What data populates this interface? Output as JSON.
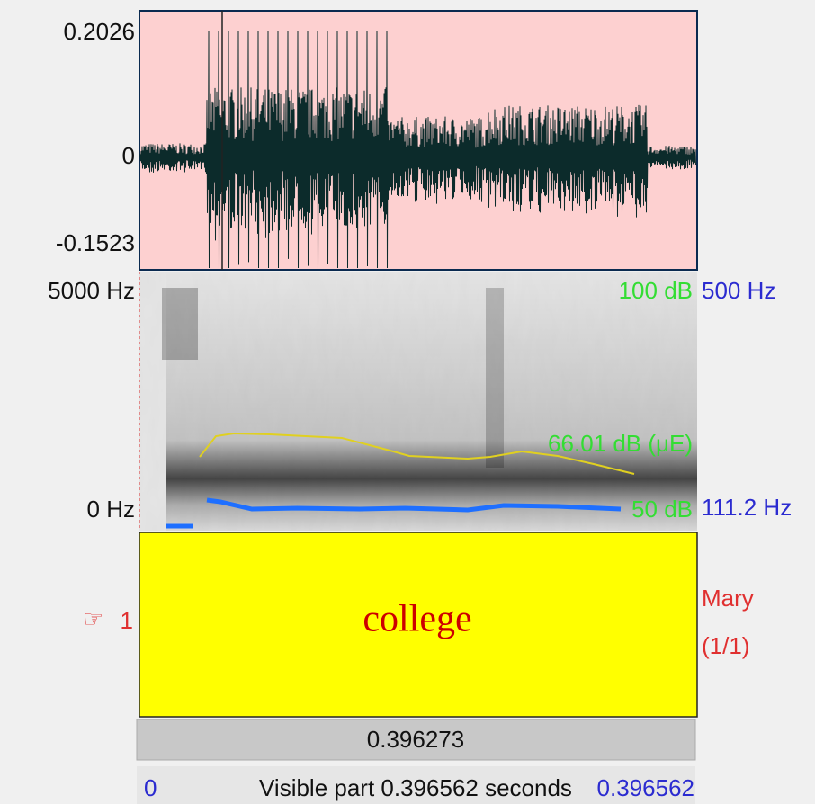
{
  "waveform": {
    "max_label": "0.2026",
    "zero_label": "0",
    "min_label": "-0.1523"
  },
  "spectrogram": {
    "top_freq": "5000 Hz",
    "bottom_freq": "0 Hz",
    "intensity_top": "100 dB",
    "pitch_top": "500 Hz",
    "intensity_value": "66.01 dB (μE)",
    "intensity_bottom": "50 dB",
    "pitch_value": "111.2 Hz"
  },
  "tier": {
    "number": "1",
    "label": "college",
    "name": "Mary",
    "count": "(1/1)"
  },
  "selection": {
    "duration": "0.396273"
  },
  "footer": {
    "start": "0",
    "visible": "Visible part 0.396562 seconds",
    "end": "0.396562"
  }
}
